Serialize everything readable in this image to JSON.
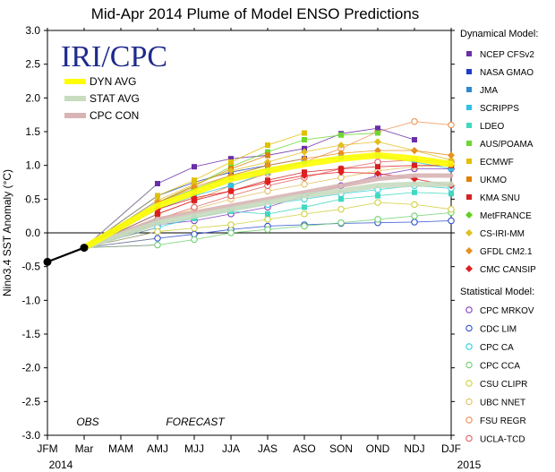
{
  "chart_data": {
    "type": "line",
    "title": "Mid-Apr 2014 Plume of Model ENSO Predictions",
    "ylabel": "Nino3.4 SST Anomaly (°C)",
    "xlabel": "",
    "ylim": [
      -3.0,
      3.0
    ],
    "yticks": [
      3.0,
      2.5,
      2.0,
      1.5,
      1.0,
      0.5,
      0.0,
      -0.5,
      -1.0,
      -1.5,
      -2.0,
      -2.5,
      -3.0
    ],
    "ytick_labels": [
      "3.0",
      "2.5",
      "2.0",
      "1.5",
      "1.0",
      "0.5",
      "0.0",
      "-0.5",
      "-1.0",
      "-1.5",
      "-2.0",
      "-2.5",
      "-3.0"
    ],
    "categories": [
      "JFM",
      "Mar",
      "MAM",
      "AMJ",
      "MJJ",
      "JJA",
      "JAS",
      "ASO",
      "SON",
      "OND",
      "NDJ",
      "DJF"
    ],
    "year_start": "2014",
    "year_end": "2015",
    "obs_label": "OBS",
    "forecast_label": "FORECAST",
    "logo": "IRI/CPC",
    "observed": [
      -0.43,
      -0.22
    ],
    "averages": [
      {
        "name": "DYN AVG",
        "color": "#ffff00",
        "values": [
          0.4,
          0.6,
          0.8,
          0.92,
          1.02,
          1.1,
          1.15,
          1.1,
          1.02
        ]
      },
      {
        "name": "STAT AVG",
        "color": "#c8dcc0",
        "values": [
          0.15,
          0.25,
          0.35,
          0.45,
          0.55,
          0.62,
          0.7,
          0.72,
          0.72
        ]
      },
      {
        "name": "CPC CON",
        "color": "#d8b4b4",
        "values": [
          0.2,
          0.3,
          0.4,
          0.5,
          0.6,
          0.7,
          0.8,
          0.85,
          0.85
        ]
      }
    ],
    "dynamical_title": "Dynamical Model:",
    "statistical_title": "Statistical Model:",
    "dynamical": [
      {
        "name": "NCEP CFSv2",
        "color": "#6a2ea8",
        "marker": "square",
        "values": [
          0.73,
          0.98,
          1.1,
          1.15,
          1.25,
          1.47,
          1.55,
          1.38
        ]
      },
      {
        "name": "NASA GMAO",
        "color": "#1f3cc8",
        "marker": "square",
        "values": [
          0.55,
          0.75,
          0.9,
          1.0,
          1.1
        ]
      },
      {
        "name": "JMA",
        "color": "#3088d0",
        "marker": "square",
        "values": [
          0.45,
          0.65,
          0.82,
          0.95,
          1.05
        ]
      },
      {
        "name": "SCRIPPS",
        "color": "#30c0e8",
        "marker": "square",
        "values": [
          0.35,
          0.55,
          0.7,
          0.9,
          1.05,
          1.12,
          1.15,
          1.05,
          0.95
        ]
      },
      {
        "name": "LDEO",
        "color": "#40d8c0",
        "marker": "square",
        "values": [
          0.15,
          0.22,
          0.32,
          0.28,
          0.38,
          0.5,
          0.55,
          0.6,
          0.58
        ]
      },
      {
        "name": "AUS/POAMA",
        "color": "#6cd830",
        "marker": "square",
        "values": [
          0.45,
          0.7,
          0.98,
          1.2,
          1.38,
          1.45,
          1.48
        ]
      },
      {
        "name": "ECMWF",
        "color": "#e0c000",
        "marker": "square",
        "values": [
          0.55,
          0.78,
          1.05,
          1.3,
          1.48
        ]
      },
      {
        "name": "UKMO",
        "color": "#e08000",
        "marker": "square",
        "values": [
          0.45,
          0.7,
          0.95,
          1.15
        ]
      },
      {
        "name": "KMA SNU",
        "color": "#d82020",
        "marker": "square",
        "values": [
          0.28,
          0.48,
          0.62,
          0.78,
          0.9,
          0.95,
          0.98,
          1.0,
          1.0
        ]
      },
      {
        "name": "MetFRANCE",
        "color": "#60d020",
        "marker": "diamond",
        "values": [
          0.4,
          0.65,
          0.85,
          1.0
        ]
      },
      {
        "name": "CS-IRI-MM",
        "color": "#e0c020",
        "marker": "diamond",
        "values": [
          0.48,
          0.72,
          0.92,
          1.05,
          1.2,
          1.3,
          1.35,
          1.22,
          1.08
        ]
      },
      {
        "name": "GFDL CM2.1",
        "color": "#e89020",
        "marker": "diamond",
        "values": [
          0.45,
          0.68,
          0.85,
          1.0,
          1.1,
          1.18,
          1.22,
          1.22,
          1.15
        ]
      },
      {
        "name": "CMC CANSIP",
        "color": "#e02020",
        "marker": "diamond",
        "values": [
          0.35,
          0.52,
          0.62,
          0.75,
          0.85,
          0.9,
          0.88,
          0.8,
          0.7
        ]
      }
    ],
    "statistical": [
      {
        "name": "CPC MRKOV",
        "color": "#8040c0",
        "marker": "circle",
        "values": [
          0.12,
          0.18,
          0.28,
          0.38,
          0.55,
          0.7,
          0.85,
          0.95,
          0.95
        ]
      },
      {
        "name": "CDC LIM",
        "color": "#3050d0",
        "marker": "circle",
        "values": [
          -0.08,
          -0.02,
          0.05,
          0.1,
          0.12,
          0.14,
          0.15,
          0.16,
          0.18
        ]
      },
      {
        "name": "CPC CA",
        "color": "#30d0e0",
        "marker": "circle",
        "values": [
          0.08,
          0.22,
          0.35,
          0.42,
          0.5,
          0.58,
          0.64,
          0.7,
          0.66
        ]
      },
      {
        "name": "CPC CCA",
        "color": "#70d070",
        "marker": "circle",
        "values": [
          -0.18,
          -0.1,
          0.0,
          0.05,
          0.1,
          0.15,
          0.2,
          0.25,
          0.3
        ]
      },
      {
        "name": "CSU CLIPR",
        "color": "#d0d040",
        "marker": "circle",
        "values": [
          0.02,
          0.07,
          0.12,
          0.2,
          0.28,
          0.35,
          0.45,
          0.42,
          0.35
        ]
      },
      {
        "name": "UBC NNET",
        "color": "#e0c060",
        "marker": "circle",
        "values": [
          0.2,
          0.35,
          0.5,
          0.62,
          0.72,
          0.82,
          0.92,
          0.98,
          1.0
        ]
      },
      {
        "name": "FSU REGR",
        "color": "#f09050",
        "marker": "circle",
        "values": [
          0.28,
          0.48,
          0.7,
          0.88,
          1.05,
          1.25,
          1.5,
          1.65,
          1.6
        ]
      },
      {
        "name": "UCLA-TCD",
        "color": "#e06060",
        "marker": "circle",
        "values": [
          0.2,
          0.38,
          0.55,
          0.7,
          0.82,
          0.95,
          1.05,
          1.08,
          1.05
        ]
      }
    ]
  }
}
